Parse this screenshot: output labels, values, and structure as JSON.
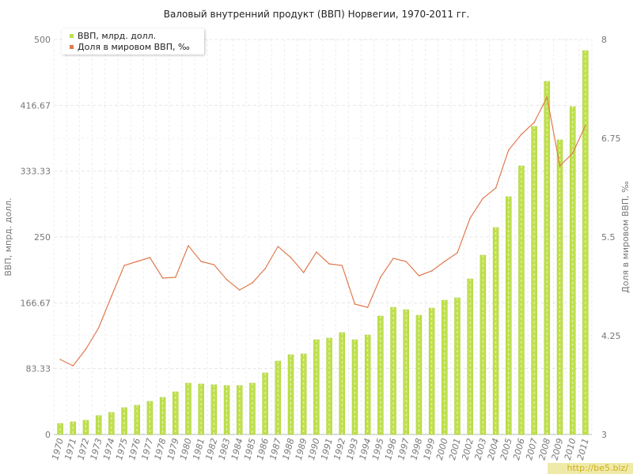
{
  "chart_data": {
    "type": "bar+line",
    "title": "Валовый внутренний продукт (ВВП) Норвегии, 1970-2011 гг.",
    "categories": [
      "1970",
      "1971",
      "1972",
      "1973",
      "1974",
      "1975",
      "1976",
      "1977",
      "1978",
      "1979",
      "1980",
      "1981",
      "1982",
      "1983",
      "1984",
      "1985",
      "1986",
      "1987",
      "1988",
      "1989",
      "1990",
      "1991",
      "1992",
      "1993",
      "1994",
      "1995",
      "1996",
      "1997",
      "1998",
      "1999",
      "2000",
      "2001",
      "2002",
      "2003",
      "2004",
      "2005",
      "2006",
      "2007",
      "2008",
      "2009",
      "2010",
      "2011"
    ],
    "y_left": {
      "label": "ВВП, мпрд. долл.",
      "range": [
        0,
        500
      ],
      "ticks": [
        "0",
        "83.33",
        "166.67",
        "250",
        "333.33",
        "416.67",
        "500"
      ]
    },
    "y_right": {
      "label": "Доля в мировом ВВП, ‰",
      "range": [
        3,
        8
      ],
      "ticks": [
        "3",
        "4.25",
        "5.5",
        "6.75",
        "8"
      ]
    },
    "series": [
      {
        "name": "ВВП, млрд. долл.",
        "type": "bar",
        "axis": "left",
        "color": "#bfe04c",
        "values": [
          14,
          16,
          18,
          24,
          28,
          34,
          37,
          42,
          47,
          54,
          65,
          64,
          63,
          62,
          62,
          65,
          78,
          93,
          101,
          102,
          120,
          122,
          129,
          120,
          126,
          150,
          161,
          158,
          151,
          160,
          170,
          173,
          197,
          227,
          262,
          301,
          340,
          390,
          447,
          373,
          415,
          486
        ]
      },
      {
        "name": "Доля в мировом ВВП, ‰",
        "type": "line",
        "axis": "right",
        "color": "#e07a50",
        "values": [
          3.95,
          3.87,
          4.08,
          4.35,
          4.75,
          5.14,
          5.19,
          5.24,
          4.98,
          4.99,
          5.39,
          5.19,
          5.15,
          4.96,
          4.83,
          4.92,
          5.1,
          5.38,
          5.24,
          5.05,
          5.31,
          5.16,
          5.14,
          4.65,
          4.61,
          4.99,
          5.23,
          5.19,
          5.01,
          5.07,
          5.19,
          5.3,
          5.74,
          5.99,
          6.12,
          6.6,
          6.8,
          6.95,
          7.27,
          6.4,
          6.56,
          6.91
        ]
      }
    ],
    "grid": true,
    "legend": "top-left"
  },
  "watermark": "http://be5.biz/"
}
